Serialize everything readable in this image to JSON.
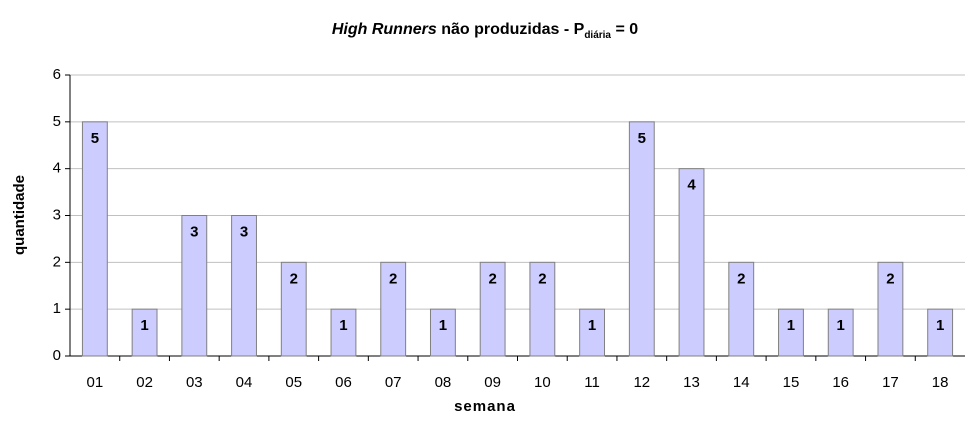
{
  "chart_data": {
    "type": "bar",
    "title": [
      "High Runners",
      " não produzidas -  P",
      "diária",
      " = 0"
    ],
    "x_label": "semana",
    "y_label": "quantidade",
    "categories": [
      "01",
      "02",
      "03",
      "04",
      "05",
      "06",
      "07",
      "08",
      "09",
      "10",
      "11",
      "12",
      "13",
      "14",
      "15",
      "16",
      "17",
      "18"
    ],
    "values": [
      5,
      1,
      3,
      3,
      2,
      1,
      2,
      1,
      2,
      2,
      1,
      5,
      4,
      2,
      1,
      1,
      2,
      1
    ],
    "color": "#ccccff",
    "ylim": [
      0,
      6
    ],
    "yticks": [
      0,
      1,
      2,
      3,
      4,
      5,
      6
    ],
    "grid": true
  }
}
